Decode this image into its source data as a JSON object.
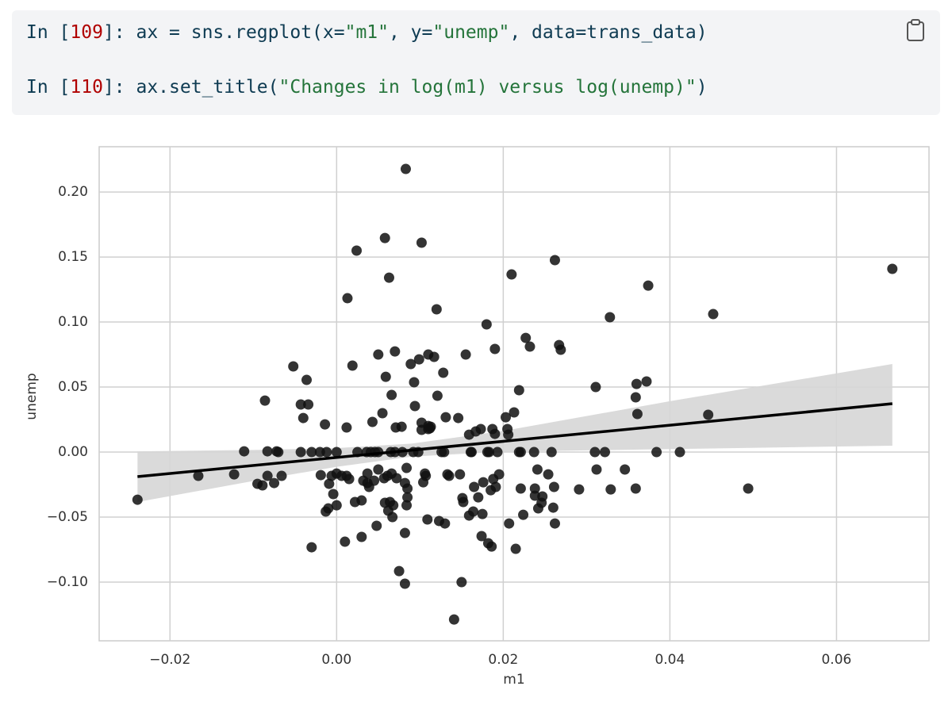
{
  "code": [
    [
      {
        "t": "In [",
        "c": "#0e3b52"
      },
      {
        "t": "109",
        "c": "#b00000"
      },
      {
        "t": "]: ",
        "c": "#0e3b52"
      },
      {
        "t": "ax = sns.regplot(x=",
        "c": "#0e3b52"
      },
      {
        "t": "\"m1\"",
        "c": "#24743a"
      },
      {
        "t": ", y=",
        "c": "#0e3b52"
      },
      {
        "t": "\"unemp\"",
        "c": "#24743a"
      },
      {
        "t": ", data=trans_data)",
        "c": "#0e3b52"
      }
    ],
    [
      {
        "t": "In [",
        "c": "#0e3b52"
      },
      {
        "t": "110",
        "c": "#b00000"
      },
      {
        "t": "]: ",
        "c": "#0e3b52"
      },
      {
        "t": "ax.set_title(",
        "c": "#0e3b52"
      },
      {
        "t": "\"Changes in log(m1) versus log(unemp)\"",
        "c": "#24743a"
      },
      {
        "t": ")",
        "c": "#0e3b52"
      }
    ]
  ],
  "chart_data": {
    "type": "scatter",
    "xlabel": "m1",
    "ylabel": "unemp",
    "color": "#111111",
    "grid": true,
    "xlim": [
      -0.0285,
      0.0711
    ],
    "ylim": [
      -0.1451,
      0.2348
    ],
    "xticks": [
      {
        "value": -0.02,
        "label": "−0.02"
      },
      {
        "value": 0,
        "label": "0.00"
      },
      {
        "value": 0.02,
        "label": "0.02"
      },
      {
        "value": 0.04,
        "label": "0.04"
      },
      {
        "value": 0.06,
        "label": "0.06"
      }
    ],
    "yticks": [
      {
        "value": -0.1,
        "label": "−0.10"
      },
      {
        "value": -0.05,
        "label": "−0.05"
      },
      {
        "value": 0,
        "label": "0.00"
      },
      {
        "value": 0.05,
        "label": "0.05"
      },
      {
        "value": 0.1,
        "label": "0.10"
      },
      {
        "value": 0.15,
        "label": "0.15"
      },
      {
        "value": 0.2,
        "label": "0.20"
      }
    ],
    "x": [
      -0.0239,
      -0.0166,
      -0.0123,
      -0.0111,
      -0.0095,
      -0.0089,
      -0.0086,
      -0.0083,
      -0.0083,
      -0.0075,
      -0.0072,
      -0.007,
      -0.0066,
      -0.0052,
      -0.0043,
      -0.0043,
      -0.004,
      -0.0036,
      -0.0034,
      -0.003,
      -0.003,
      -0.002,
      -0.0019,
      -0.0014,
      -0.0013,
      -0.0012,
      -0.001,
      -0.0009,
      -0.0006,
      -0.0004,
      0,
      0,
      0,
      0.0006,
      0.001,
      0.0012,
      0.0012,
      0.0013,
      0.0015,
      0.0019,
      0.0022,
      0.0024,
      0.0025,
      0.003,
      0.003,
      0.0032,
      0.0036,
      0.0037,
      0.0037,
      0.0039,
      0.0041,
      0.0043,
      0.0045,
      0.0046,
      0.0048,
      0.005,
      0.005,
      0.005,
      0.0055,
      0.0057,
      0.0058,
      0.0058,
      0.0059,
      0.0061,
      0.0062,
      0.0063,
      0.0064,
      0.0065,
      0.0066,
      0.0066,
      0.0067,
      0.0068,
      0.007,
      0.007,
      0.0071,
      0.0072,
      0.0075,
      0.0078,
      0.0079,
      0.0082,
      0.0082,
      0.0082,
      0.0083,
      0.0084,
      0.0084,
      0.0085,
      0.0085,
      0.0089,
      0.0092,
      0.0093,
      0.0094,
      0.0098,
      0.0099,
      0.0102,
      0.0102,
      0.0102,
      0.0104,
      0.0106,
      0.0107,
      0.0109,
      0.011,
      0.011,
      0.011,
      0.0112,
      0.0113,
      0.0117,
      0.012,
      0.0121,
      0.0123,
      0.0126,
      0.0128,
      0.0129,
      0.013,
      0.0131,
      0.0133,
      0.0135,
      0.0141,
      0.0146,
      0.0148,
      0.015,
      0.0151,
      0.0152,
      0.0155,
      0.0159,
      0.0159,
      0.0161,
      0.0162,
      0.0164,
      0.0165,
      0.0167,
      0.017,
      0.0173,
      0.0174,
      0.0175,
      0.0176,
      0.018,
      0.0181,
      0.0182,
      0.0183,
      0.0185,
      0.0186,
      0.0187,
      0.0188,
      0.019,
      0.019,
      0.0191,
      0.0193,
      0.0195,
      0.0203,
      0.0205,
      0.0206,
      0.0207,
      0.021,
      0.0213,
      0.0215,
      0.0219,
      0.0219,
      0.0221,
      0.0221,
      0.0224,
      0.0227,
      0.0232,
      0.0237,
      0.0238,
      0.0238,
      0.0241,
      0.0242,
      0.0246,
      0.0247,
      0.0254,
      0.0258,
      0.026,
      0.0261,
      0.0262,
      0.0262,
      0.0267,
      0.0269,
      0.0291,
      0.031,
      0.0311,
      0.0312,
      0.0322,
      0.0328,
      0.0329,
      0.0346,
      0.0359,
      0.0359,
      0.036,
      0.0361,
      0.0372,
      0.0374,
      0.0384,
      0.0412,
      0.0446,
      0.0452,
      0.0494,
      0.0667
    ],
    "values": [
      -0.0366,
      -0.0183,
      -0.0171,
      0.0006,
      -0.0244,
      -0.0256,
      0.0396,
      0.0006,
      -0.0183,
      -0.0238,
      0.0006,
      0,
      -0.0183,
      0.0659,
      0,
      0.0366,
      0.0262,
      0.0555,
      0.0366,
      -0.0732,
      0,
      0,
      -0.0177,
      0.0213,
      -0.0457,
      0,
      -0.0433,
      -0.0244,
      -0.0183,
      -0.0323,
      0,
      -0.0409,
      -0.0165,
      -0.0183,
      -0.0689,
      0.0189,
      -0.0183,
      0.1183,
      -0.0207,
      0.0665,
      -0.0384,
      0.1549,
      0,
      -0.0652,
      -0.0372,
      -0.022,
      0,
      -0.0165,
      -0.0238,
      -0.0268,
      0,
      0.0232,
      -0.022,
      0,
      -0.0567,
      0.075,
      0,
      -0.0134,
      0.0299,
      -0.0201,
      -0.039,
      0.1646,
      0.0579,
      -0.0183,
      -0.0451,
      0.1341,
      -0.0384,
      0,
      0.0439,
      -0.0165,
      -0.05,
      -0.0409,
      0,
      0.0774,
      0.0189,
      -0.0201,
      -0.0915,
      0.0195,
      0,
      -0.0622,
      -0.1012,
      -0.0238,
      0.2177,
      -0.0122,
      -0.0409,
      -0.028,
      -0.0348,
      0.0677,
      0,
      0.0537,
      0.0354,
      0,
      0.0713,
      0.161,
      0.0226,
      0.0171,
      -0.0232,
      -0.0165,
      -0.0183,
      -0.0518,
      0.0201,
      0.075,
      0.0177,
      0.0183,
      0.0195,
      0.0732,
      0.1098,
      0.0433,
      -0.053,
      0,
      0.061,
      0,
      -0.0549,
      0.0268,
      -0.0171,
      -0.0183,
      -0.1287,
      0.0262,
      -0.0171,
      -0.1,
      -0.0354,
      -0.0384,
      0.075,
      0.0134,
      -0.0488,
      0,
      0,
      -0.0457,
      -0.0268,
      0.0159,
      -0.0348,
      0.0177,
      -0.0646,
      -0.0476,
      -0.0232,
      0.0982,
      0,
      -0.0701,
      0,
      -0.0293,
      -0.0726,
      0.0177,
      -0.0207,
      0.014,
      0.0793,
      -0.0268,
      0,
      -0.0171,
      0.0268,
      0.0177,
      0.0134,
      -0.0549,
      0.1366,
      0.0305,
      -0.0744,
      0.0476,
      0,
      0,
      -0.028,
      -0.0482,
      0.0878,
      0.0811,
      0,
      -0.028,
      -0.0335,
      -0.0134,
      -0.0433,
      -0.039,
      -0.0341,
      -0.0171,
      0,
      -0.0427,
      -0.0268,
      0.1476,
      -0.0549,
      0.0823,
      0.0787,
      -0.0287,
      0,
      0.05,
      -0.0134,
      0,
      0.1037,
      -0.0287,
      -0.0134,
      0.0421,
      -0.028,
      0.0524,
      0.0293,
      0.0543,
      0.128,
      0,
      0,
      0.0287,
      0.1061,
      -0.028,
      0.1409
    ],
    "regression": {
      "x": [
        -0.0239,
        0.0667
      ],
      "values": [
        -0.0189,
        0.0372
      ],
      "color": "#000000"
    },
    "ci": {
      "x": [
        -0.0239,
        -0.01,
        0,
        0.009,
        0.02,
        0.04,
        0.0667
      ],
      "lower": [
        -0.0384,
        -0.0222,
        -0.0113,
        -0.0035,
        0.0003,
        0.0023,
        0.0049
      ],
      "upper": [
        0.0006,
        0.0016,
        0.0031,
        0.0065,
        0.0163,
        0.0391,
        0.0677
      ],
      "color": "#d6d6d6"
    }
  }
}
